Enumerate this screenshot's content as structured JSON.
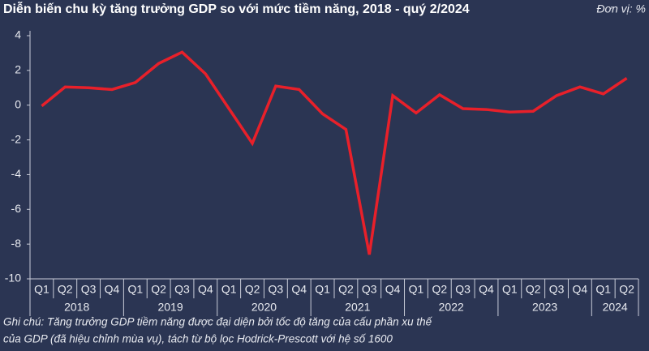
{
  "chart_data": {
    "type": "line",
    "title": "Diễn biến chu kỳ tăng trưởng GDP so với mức tiềm năng, 2018 - quý 2/2024",
    "unit_label": "Đơn vị: %",
    "groups": [
      {
        "name": "2018",
        "categories": [
          "Q1",
          "Q2",
          "Q3",
          "Q4"
        ]
      },
      {
        "name": "2019",
        "categories": [
          "Q1",
          "Q2",
          "Q3",
          "Q4"
        ]
      },
      {
        "name": "2020",
        "categories": [
          "Q1",
          "Q2",
          "Q3",
          "Q4"
        ]
      },
      {
        "name": "2021",
        "categories": [
          "Q1",
          "Q2",
          "Q3",
          "Q4"
        ]
      },
      {
        "name": "2022",
        "categories": [
          "Q1",
          "Q2",
          "Q3",
          "Q4"
        ]
      },
      {
        "name": "2023",
        "categories": [
          "Q1",
          "Q2",
          "Q3",
          "Q4"
        ]
      },
      {
        "name": "2024",
        "categories": [
          "Q1",
          "Q2"
        ]
      }
    ],
    "series": [
      {
        "color": "#e8202a",
        "values": [
          -0.05,
          1.05,
          1.0,
          0.9,
          1.3,
          2.4,
          3.05,
          1.8,
          -0.2,
          -2.2,
          1.1,
          0.9,
          -0.5,
          -1.4,
          -8.6,
          0.55,
          -0.45,
          0.6,
          -0.2,
          -0.25,
          -0.4,
          -0.35,
          0.55,
          1.05,
          0.65,
          1.55
        ]
      }
    ],
    "ylim": [
      -10,
      4
    ],
    "yticks": [
      -10,
      -8,
      -6,
      -4,
      -2,
      0,
      2,
      4
    ],
    "notes": [
      "Ghi chú: Tăng trưởng GDP tiềm năng được đại diện bởi tốc độ tăng của cấu phần xu thế",
      "của GDP (đã hiệu chỉnh mùa vụ), tách từ bộ lọc Hodrick-Prescott với hệ số 1600"
    ]
  }
}
